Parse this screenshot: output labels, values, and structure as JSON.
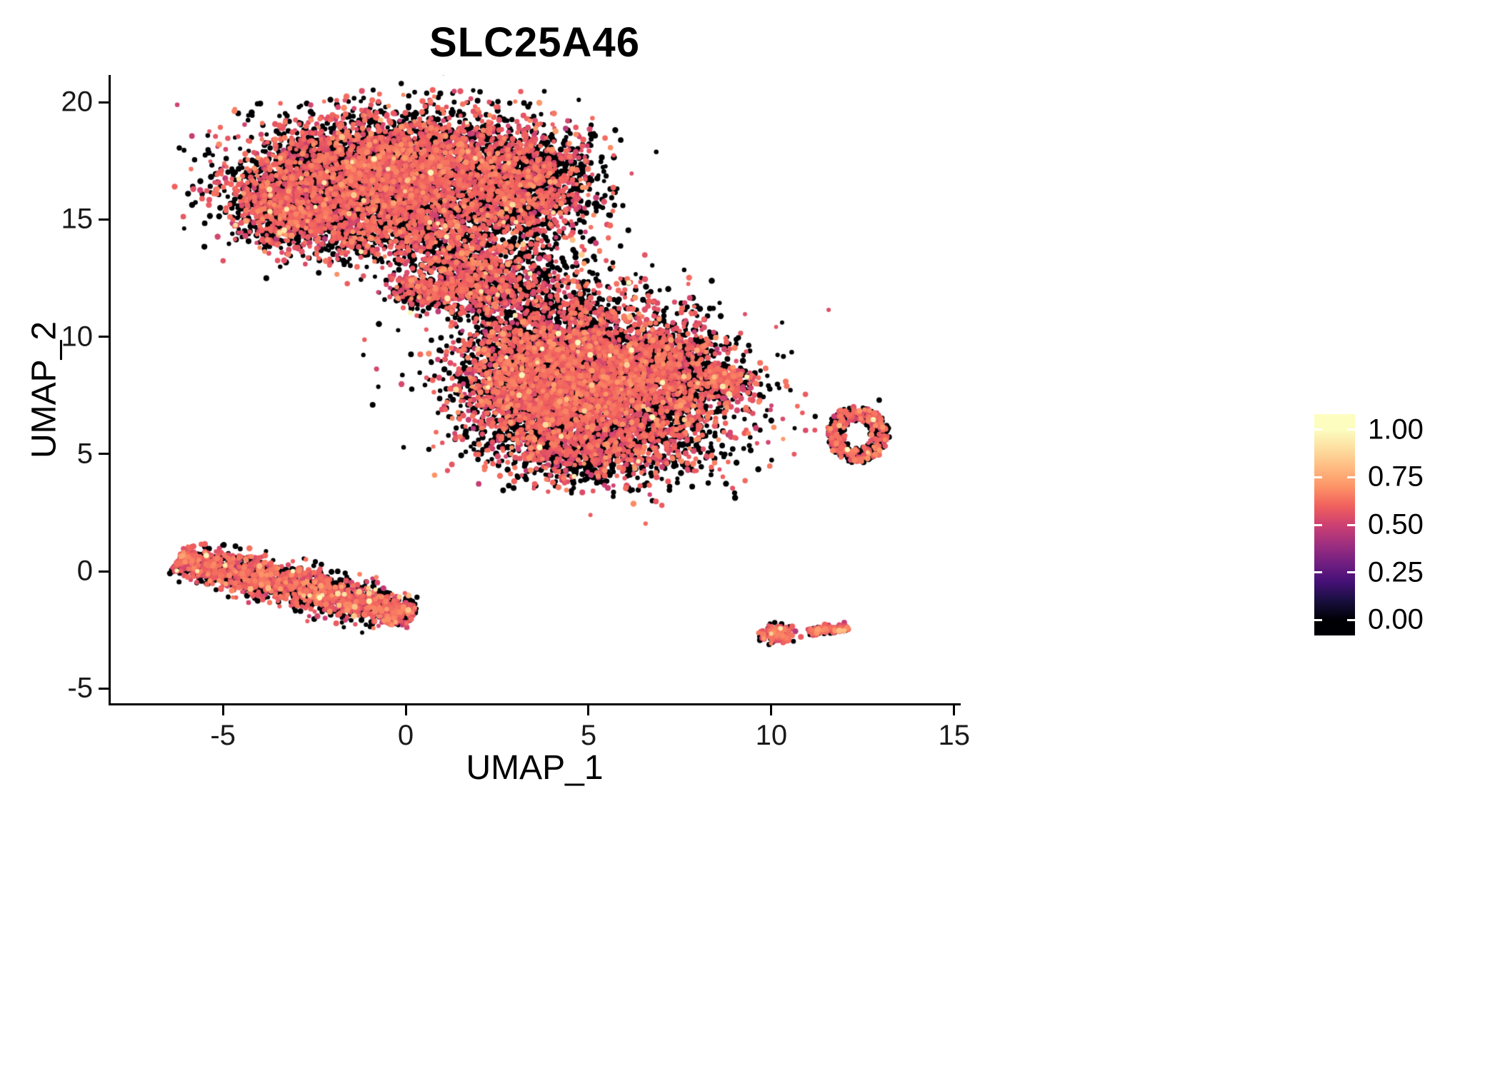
{
  "chart_data": {
    "type": "scatter",
    "title": "SLC25A46",
    "xlabel": "UMAP_1",
    "ylabel": "UMAP_2",
    "xlim": [
      -8.07,
      15.18
    ],
    "ylim": [
      -5.63,
      21.16
    ],
    "grid": false,
    "x_ticks": {
      "values": [
        -5,
        0,
        5,
        10,
        15
      ],
      "labels": [
        "-5",
        "0",
        "5",
        "10",
        "15"
      ]
    },
    "y_ticks": {
      "values": [
        -5,
        0,
        5,
        10,
        15,
        20
      ],
      "labels": [
        "-5",
        "0",
        "5",
        "10",
        "15",
        "20"
      ]
    },
    "legend": {
      "position": "right",
      "ticks": [
        {
          "label": "1.00",
          "value": 1.0
        },
        {
          "label": "0.75",
          "value": 0.75
        },
        {
          "label": "0.50",
          "value": 0.5
        },
        {
          "label": "0.25",
          "value": 0.25
        },
        {
          "label": "0.00",
          "value": 0.0
        }
      ]
    },
    "palette": {
      "name": "magma",
      "stops": [
        [
          0.0,
          "#000004"
        ],
        [
          0.1,
          "#180f3e"
        ],
        [
          0.2,
          "#451077"
        ],
        [
          0.3,
          "#721f81"
        ],
        [
          0.4,
          "#9f2f7f"
        ],
        [
          0.5,
          "#cd4071"
        ],
        [
          0.6,
          "#f1605d"
        ],
        [
          0.7,
          "#fd9467"
        ],
        [
          0.8,
          "#feba80"
        ],
        [
          0.9,
          "#fddea0"
        ],
        [
          1.0,
          "#fcfdbf"
        ]
      ]
    },
    "point": {
      "radius_px": 3.6,
      "seed": 42
    },
    "expression": {
      "p_zero": 0.52,
      "mid_mean": 0.58,
      "mid_sd": 0.055,
      "mid_min": 0.45,
      "mid_max": 0.78,
      "p_high": 0.012,
      "high_min": 0.8,
      "high_max": 1.0
    },
    "clusters": [
      {
        "name": "top-main-left",
        "type": "gauss",
        "cx": -1.8,
        "cy": 16.6,
        "sx": 1.55,
        "sy": 1.35,
        "n": 2600
      },
      {
        "name": "top-main-upper",
        "type": "gauss",
        "cx": 0.6,
        "cy": 17.4,
        "sx": 1.5,
        "sy": 1.15,
        "n": 2100
      },
      {
        "name": "top-right-lobe",
        "type": "gauss",
        "cx": 3.2,
        "cy": 16.4,
        "sx": 1.05,
        "sy": 1.25,
        "n": 1600,
        "p_zero": 0.58
      },
      {
        "name": "top-left-tip",
        "type": "gauss",
        "cx": -3.3,
        "cy": 15.4,
        "sx": 0.7,
        "sy": 0.85,
        "n": 650
      },
      {
        "name": "top-bottom-edge",
        "type": "gauss",
        "cx": 0.3,
        "cy": 14.6,
        "sx": 1.5,
        "sy": 0.8,
        "n": 900
      },
      {
        "name": "neck-upper",
        "type": "gauss",
        "cx": 1.6,
        "cy": 13.0,
        "sx": 0.8,
        "sy": 0.6,
        "n": 420
      },
      {
        "name": "neck-funnel",
        "type": "gauss",
        "cx": 2.2,
        "cy": 11.9,
        "sx": 0.8,
        "sy": 0.55,
        "n": 380
      },
      {
        "name": "neck-sparse-right",
        "type": "gauss",
        "cx": 3.8,
        "cy": 12.3,
        "sx": 0.9,
        "sy": 0.8,
        "n": 200,
        "p_zero": 0.6
      },
      {
        "name": "neck-left-clump",
        "type": "gauss",
        "cx": 0.6,
        "cy": 11.9,
        "sx": 0.55,
        "sy": 0.35,
        "n": 260
      },
      {
        "name": "mid-upper",
        "type": "gauss",
        "cx": 4.5,
        "cy": 9.4,
        "sx": 1.6,
        "sy": 1.3,
        "n": 2500
      },
      {
        "name": "mid-lower",
        "type": "gauss",
        "cx": 5.6,
        "cy": 7.0,
        "sx": 1.7,
        "sy": 1.4,
        "n": 2500
      },
      {
        "name": "mid-left",
        "type": "gauss",
        "cx": 3.2,
        "cy": 7.6,
        "sx": 0.95,
        "sy": 1.2,
        "n": 1100
      },
      {
        "name": "mid-right",
        "type": "gauss",
        "cx": 7.2,
        "cy": 8.5,
        "sx": 0.95,
        "sy": 0.95,
        "n": 850,
        "p_zero": 0.6
      },
      {
        "name": "mid-right-tail",
        "type": "gauss",
        "cx": 8.5,
        "cy": 8.1,
        "sx": 0.45,
        "sy": 0.3,
        "n": 220
      },
      {
        "name": "mid-bottom",
        "type": "gauss",
        "cx": 5.0,
        "cy": 5.1,
        "sx": 1.25,
        "sy": 0.7,
        "n": 650,
        "p_zero": 0.62
      },
      {
        "name": "bottom-left-stripe",
        "type": "stripe",
        "cx": -3.0,
        "cy": -0.65,
        "length": 6.9,
        "width": 0.42,
        "angle": -20.5,
        "n": 2200,
        "p_zero": 0.5,
        "p_high": 0.02
      },
      {
        "name": "right-ring",
        "type": "ring",
        "cx": 12.35,
        "cy": 5.85,
        "rx": 0.8,
        "ry": 1.15,
        "inner": 0.45,
        "n": 520,
        "p_zero": 0.55
      },
      {
        "name": "bottom-right-blob",
        "type": "gauss",
        "cx": 10.15,
        "cy": -2.7,
        "sx": 0.22,
        "sy": 0.18,
        "n": 170,
        "p_zero": 0.3
      },
      {
        "name": "bottom-right-dash",
        "type": "stripe",
        "cx": 11.55,
        "cy": -2.5,
        "length": 1.1,
        "width": 0.1,
        "angle": 8,
        "n": 130,
        "p_zero": 0.35
      }
    ],
    "singles": [
      [
        6.6,
        3.75,
        0
      ],
      [
        9.05,
        8.2,
        0.58
      ],
      [
        10.85,
        6.75,
        0.58
      ],
      [
        11.2,
        6.6,
        0
      ],
      [
        1.15,
        10.75,
        0
      ],
      [
        0.3,
        10.9,
        0.58
      ],
      [
        5.6,
        12.9,
        0
      ],
      [
        6.1,
        12.3,
        0
      ],
      [
        -0.2,
        12.4,
        0.58
      ],
      [
        12.95,
        7.3,
        0
      ],
      [
        9.4,
        7.9,
        0
      ],
      [
        2.9,
        13.6,
        0.58
      ]
    ]
  }
}
